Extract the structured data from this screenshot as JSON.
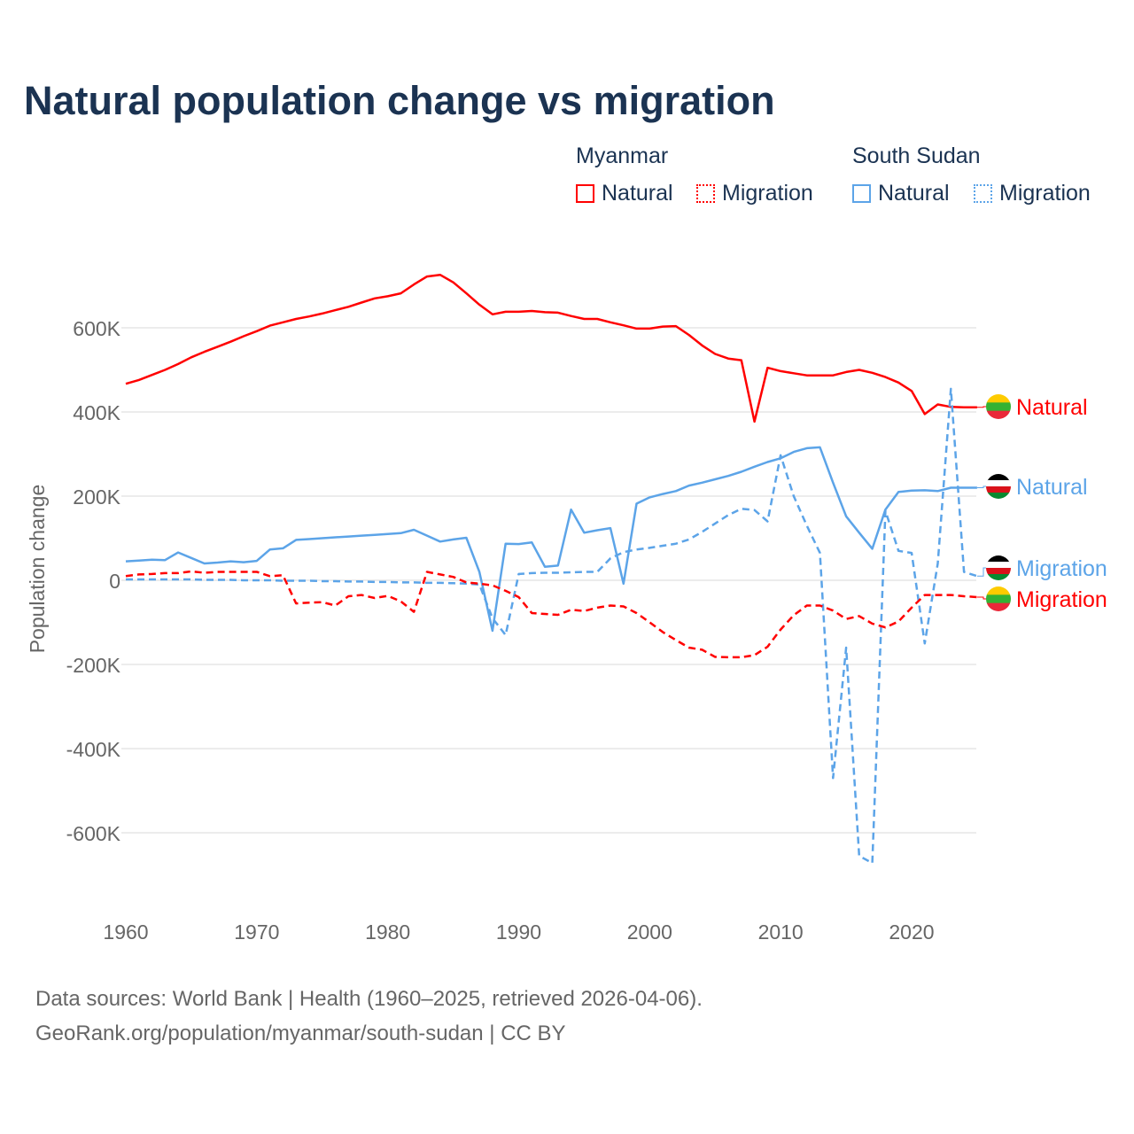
{
  "title": "Natural population change vs migration",
  "legend": {
    "groups": [
      {
        "name": "Myanmar",
        "color": "#ff0000",
        "items": [
          "Natural",
          "Migration"
        ]
      },
      {
        "name": "South Sudan",
        "color": "#5ca4e8",
        "items": [
          "Natural",
          "Migration"
        ]
      }
    ]
  },
  "footer": {
    "line1": "Data sources: World Bank | Health (1960–2025, retrieved 2026-04-06).",
    "line2": "GeoRank.org/population/myanmar/south-sudan | CC BY"
  },
  "chart_data": {
    "type": "line",
    "title": "Natural population change vs migration",
    "xlabel": "",
    "ylabel": "Population change",
    "xlim": [
      1960,
      2025
    ],
    "ylim": [
      -700000,
      750000
    ],
    "xticks": [
      1960,
      1970,
      1980,
      1990,
      2000,
      2010,
      2020
    ],
    "xtick_labels": [
      "1960",
      "1970",
      "1980",
      "1990",
      "2000",
      "2010",
      "2020"
    ],
    "yticks": [
      600000,
      400000,
      200000,
      0,
      -200000,
      -400000,
      -600000
    ],
    "ytick_labels": [
      "600K",
      "400K",
      "200K",
      "0",
      "-200K",
      "-400K",
      "-600K"
    ],
    "grid": true,
    "legend_placement": "top-right",
    "x_start": 1960,
    "series": [
      {
        "name": "Myanmar Natural",
        "label": "Natural",
        "color": "#ff0000",
        "dash": false,
        "values": [
          467,
          476,
          488,
          500,
          514,
          530,
          543,
          555,
          567,
          580,
          592,
          605,
          613,
          621,
          627,
          634,
          642,
          650,
          660,
          670,
          675,
          682,
          703,
          722,
          726,
          708,
          682,
          655,
          632,
          638,
          638,
          640,
          637,
          636,
          628,
          621,
          621,
          613,
          606,
          598,
          598,
          603,
          604,
          583,
          558,
          538,
          527,
          523,
          377,
          505,
          497,
          492,
          487,
          487,
          487,
          495,
          500,
          493,
          483,
          470,
          450,
          395,
          418,
          412,
          411,
          411
        ]
      },
      {
        "name": "South Sudan Natural",
        "label": "Natural",
        "color": "#5ca4e8",
        "dash": false,
        "values": [
          45,
          47,
          49,
          48,
          66,
          53,
          40,
          42,
          45,
          43,
          46,
          73,
          76,
          96,
          98,
          100,
          102,
          104,
          106,
          108,
          110,
          112,
          120,
          106,
          92,
          97,
          101,
          20,
          -120,
          87,
          86,
          90,
          32,
          35,
          168,
          113,
          119,
          124,
          -8,
          182,
          197,
          205,
          212,
          225,
          232,
          240,
          248,
          258,
          270,
          281,
          290,
          305,
          314,
          316,
          232,
          152,
          113,
          75,
          168,
          210,
          213,
          214,
          212,
          220,
          220,
          220
        ]
      },
      {
        "name": "South Sudan Migration",
        "label": "Migration",
        "color": "#5ca4e8",
        "dash": true,
        "values": [
          2,
          2,
          2,
          2,
          2,
          2,
          1,
          1,
          1,
          0,
          0,
          0,
          -1,
          -1,
          -1,
          -2,
          -2,
          -3,
          -3,
          -4,
          -4,
          -5,
          -5,
          -6,
          -6,
          -7,
          -8,
          -10,
          -90,
          -130,
          15,
          17,
          18,
          18,
          19,
          20,
          20,
          52,
          67,
          73,
          77,
          82,
          87,
          97,
          115,
          135,
          155,
          170,
          167,
          140,
          297,
          200,
          130,
          65,
          -470,
          -160,
          -655,
          -672,
          165,
          70,
          65,
          -150,
          40,
          455,
          20,
          10
        ]
      },
      {
        "name": "Myanmar Migration",
        "label": "Migration",
        "color": "#ff0000",
        "dash": true,
        "values": [
          10,
          14,
          15,
          17,
          17,
          21,
          18,
          20,
          20,
          20,
          20,
          10,
          12,
          -55,
          -53,
          -52,
          -60,
          -38,
          -35,
          -42,
          -37,
          -50,
          -75,
          20,
          14,
          8,
          -5,
          -8,
          -12,
          -25,
          -40,
          -78,
          -80,
          -82,
          -70,
          -73,
          -65,
          -60,
          -62,
          -78,
          -100,
          -123,
          -142,
          -160,
          -165,
          -182,
          -183,
          -183,
          -178,
          -158,
          -117,
          -83,
          -60,
          -60,
          -72,
          -92,
          -85,
          -103,
          -112,
          -98,
          -65,
          -35,
          -35,
          -35,
          -38,
          -40
        ]
      }
    ],
    "value_unit": "thousands"
  }
}
